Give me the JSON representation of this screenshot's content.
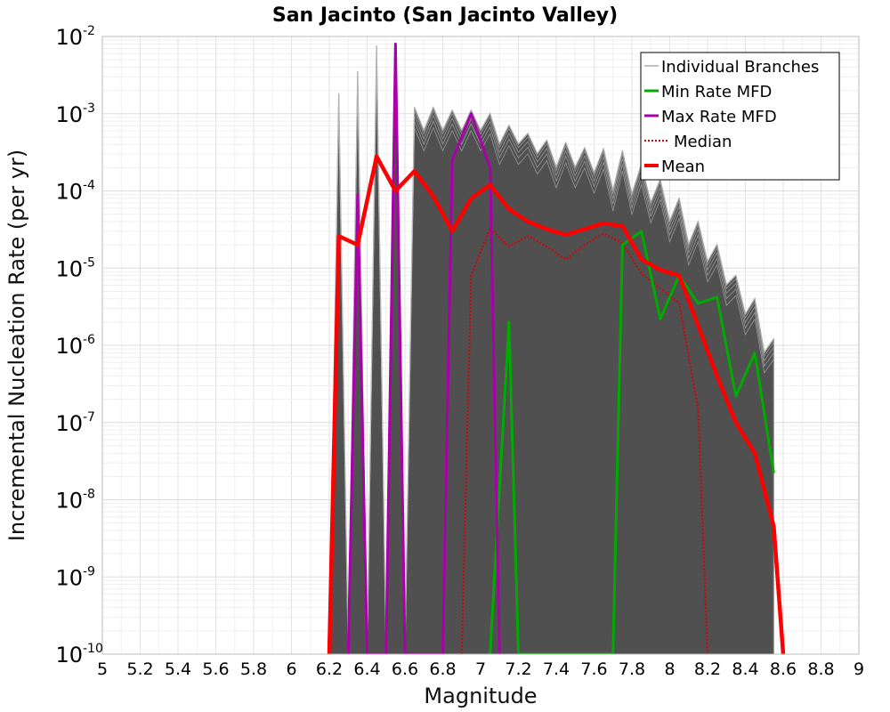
{
  "chart_data": {
    "type": "line",
    "title": "San Jacinto (San Jacinto Valley)",
    "xlabel": "Magnitude",
    "ylabel": "Incremental Nucleation Rate (per yr)",
    "xlim": [
      5,
      9
    ],
    "ylim": [
      1e-10,
      0.01
    ],
    "yscale": "log",
    "grid": true,
    "legend_position": "top-right",
    "x_ticks": [
      "5",
      "5.2",
      "5.4",
      "5.6",
      "5.8",
      "6",
      "6.2",
      "6.4",
      "6.6",
      "6.8",
      "7",
      "7.2",
      "7.4",
      "7.6",
      "7.8",
      "8",
      "8.2",
      "8.4",
      "8.6",
      "8.8",
      "9"
    ],
    "y_ticks": [
      {
        "base": "10",
        "exp": "-2",
        "value": 0.01
      },
      {
        "base": "10",
        "exp": "-3",
        "value": 0.001
      },
      {
        "base": "10",
        "exp": "-4",
        "value": 0.0001
      },
      {
        "base": "10",
        "exp": "-5",
        "value": 1e-05
      },
      {
        "base": "10",
        "exp": "-6",
        "value": 1e-06
      },
      {
        "base": "10",
        "exp": "-7",
        "value": 1e-07
      },
      {
        "base": "10",
        "exp": "-8",
        "value": 1e-08
      },
      {
        "base": "10",
        "exp": "-9",
        "value": 1e-09
      },
      {
        "base": "10",
        "exp": "-10",
        "value": 1e-10
      }
    ],
    "series": [
      {
        "name": "Individual Branches",
        "color": "#555555",
        "style": "solid-thin",
        "note_values": "envelope of many logic-tree branches",
        "x": [
          6.2,
          6.25,
          6.3,
          6.35,
          6.4,
          6.45,
          6.5,
          6.55,
          6.6,
          6.65,
          6.7,
          6.75,
          6.8,
          6.85,
          6.9,
          6.95,
          7.0,
          7.05,
          7.1,
          7.15,
          7.2,
          7.25,
          7.3,
          7.35,
          7.4,
          7.45,
          7.5,
          7.55,
          7.6,
          7.65,
          7.7,
          7.75,
          7.8,
          7.85,
          7.9,
          7.95,
          8.0,
          8.05,
          8.1,
          8.15,
          8.2,
          8.25,
          8.3,
          8.35,
          8.4,
          8.45,
          8.5,
          8.55
        ],
        "upper": [
          1e-10,
          0.0018,
          1e-10,
          0.0035,
          1e-10,
          0.0075,
          1e-10,
          0.0075,
          1e-10,
          0.0012,
          0.0006,
          0.0012,
          0.0006,
          0.0011,
          0.0006,
          0.0011,
          0.0006,
          0.001,
          0.0004,
          0.0007,
          0.0004,
          0.00055,
          0.0003,
          0.00045,
          0.0002,
          0.00042,
          0.0002,
          0.00036,
          0.00017,
          0.00035,
          0.0001,
          0.00033,
          9e-05,
          0.00022,
          7e-05,
          0.00014,
          4e-05,
          8e-05,
          2e-05,
          4e-05,
          1.2e-05,
          2e-05,
          6e-06,
          8e-06,
          2.5e-06,
          4e-06,
          8e-07,
          1.2e-06
        ]
      },
      {
        "name": "Min Rate MFD",
        "color": "#00aa00",
        "style": "solid",
        "x": [
          7.05,
          7.15,
          7.2,
          7.7,
          7.75,
          7.85,
          7.95,
          8.05,
          8.15,
          8.25,
          8.35,
          8.45,
          8.55
        ],
        "values": [
          1e-10,
          2e-06,
          1e-10,
          1e-10,
          2e-05,
          3e-05,
          2.2e-06,
          8e-06,
          3.5e-06,
          4.2e-06,
          2.2e-07,
          8e-07,
          2.2e-08
        ]
      },
      {
        "name": "Max Rate MFD",
        "color": "#aa00aa",
        "style": "solid",
        "x": [
          6.3,
          6.35,
          6.4,
          6.5,
          6.55,
          6.6,
          6.8,
          6.85,
          6.95,
          7.05,
          7.1
        ],
        "values": [
          1e-10,
          9e-05,
          1e-10,
          1e-10,
          0.008,
          1e-10,
          1e-10,
          0.00025,
          0.001,
          0.0002,
          1e-10
        ]
      },
      {
        "name": "Median",
        "color": "#dd0000",
        "style": "dotted",
        "x": [
          6.9,
          6.95,
          7.05,
          7.15,
          7.25,
          7.35,
          7.45,
          7.55,
          7.65,
          7.75,
          7.85,
          7.95,
          8.05,
          8.15,
          8.2
        ],
        "values": [
          1e-10,
          8e-06,
          3.3e-05,
          1.9e-05,
          2.6e-05,
          1.9e-05,
          1.3e-05,
          2e-05,
          2.8e-05,
          2.1e-05,
          8.5e-06,
          5.5e-06,
          3.5e-06,
          1.5e-07,
          1e-10
        ]
      },
      {
        "name": "Mean",
        "color": "#ff0000",
        "style": "thick",
        "x": [
          6.2,
          6.25,
          6.35,
          6.45,
          6.55,
          6.65,
          6.75,
          6.85,
          6.95,
          7.05,
          7.15,
          7.25,
          7.35,
          7.45,
          7.55,
          7.65,
          7.75,
          7.85,
          7.95,
          8.05,
          8.15,
          8.25,
          8.35,
          8.45,
          8.55,
          8.6
        ],
        "values": [
          1e-10,
          2.6e-05,
          2e-05,
          0.00028,
          0.0001,
          0.00018,
          8.5e-05,
          3e-05,
          8e-05,
          0.00012,
          5.8e-05,
          4e-05,
          3.2e-05,
          2.7e-05,
          3.2e-05,
          3.8e-05,
          3.5e-05,
          1.3e-05,
          9.5e-06,
          8e-06,
          1.8e-06,
          4e-07,
          1e-07,
          4e-08,
          4.5e-09,
          1e-10
        ]
      }
    ]
  }
}
